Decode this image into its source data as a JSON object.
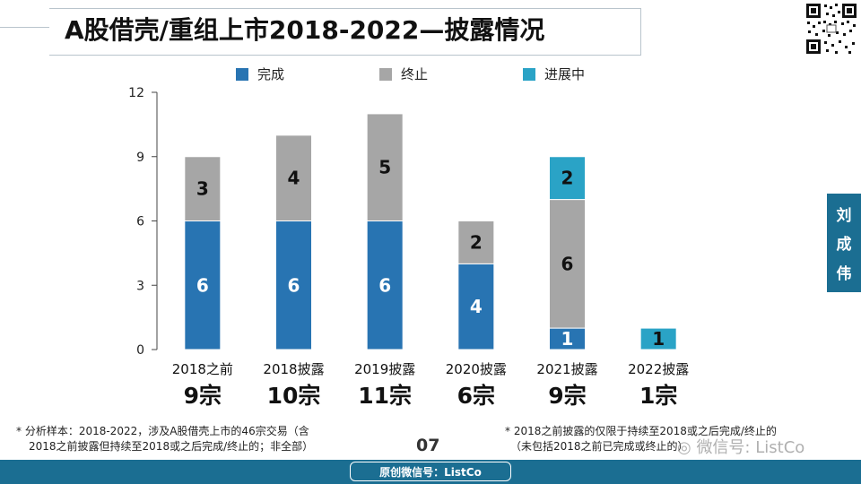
{
  "title": "A股借壳/重组上市2018-2022—披露情况",
  "side_tab": [
    "刘",
    "成",
    "伟"
  ],
  "legend": [
    {
      "label": "完成",
      "color": "#2874b2"
    },
    {
      "label": "终止",
      "color": "#a6a6a6"
    },
    {
      "label": "进展中",
      "color": "#2aa3c6"
    }
  ],
  "chart_data": {
    "type": "bar",
    "stacked": true,
    "categories": [
      "2018之前",
      "2018披露",
      "2019披露",
      "2020披露",
      "2021披露",
      "2022披露"
    ],
    "totals": [
      "9宗",
      "10宗",
      "11宗",
      "6宗",
      "9宗",
      "1宗"
    ],
    "series": [
      {
        "name": "完成",
        "color": "#2874b2",
        "values": [
          6,
          6,
          6,
          4,
          1,
          0
        ]
      },
      {
        "name": "终止",
        "color": "#a6a6a6",
        "values": [
          3,
          4,
          5,
          2,
          6,
          0
        ]
      },
      {
        "name": "进展中",
        "color": "#2aa3c6",
        "values": [
          0,
          0,
          0,
          0,
          2,
          1
        ]
      }
    ],
    "yticks": [
      0,
      3,
      6,
      9,
      12
    ],
    "ylim": [
      0,
      12
    ],
    "title": "",
    "xlabel": "",
    "ylabel": ""
  },
  "footnote_left": [
    "* 分析样本：2018-2022，涉及A股借壳上市的46宗交易（含",
    "2018之前披露但持续至2018或之后完成/终止的；非全部）"
  ],
  "footnote_right": [
    "* 2018之前披露的仅限于持续至2018或之后完成/终止的",
    "（未包括2018之前已完成或终止的）"
  ],
  "page_number": "07",
  "bottom_label": "原创微信号：ListCo",
  "watermark": "微信号: ListCo"
}
